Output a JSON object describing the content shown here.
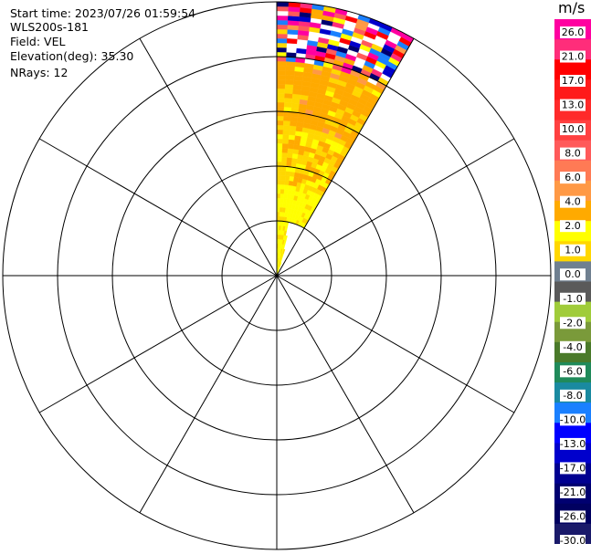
{
  "info": {
    "start_time": "Start time: 2023/07/26 01:59:54",
    "instrument": "WLS200s-181",
    "field": "Field: VEL",
    "elevation": "Elevation(deg): 35.30",
    "nrays": "NRays: 12"
  },
  "colorbar": {
    "unit": "m/s",
    "labels": [
      "26.0",
      "21.0",
      "17.0",
      "13.0",
      "10.0",
      "8.0",
      "6.0",
      "4.0",
      "2.0",
      "1.0",
      "0.0",
      "-1.0",
      "-2.0",
      "-4.0",
      "-6.0",
      "-8.0",
      "-10.0",
      "-13.0",
      "-17.0",
      "-21.0",
      "-26.0",
      "-30.0"
    ],
    "colors": [
      "#ff00a0",
      "#ff2d7a",
      "#ff0000",
      "#ff1a1a",
      "#ff2a2a",
      "#ff4040",
      "#ff5a5a",
      "#ff7a55",
      "#ff9945",
      "#ffaa00",
      "#ffff00",
      "#ffd700",
      "#708090",
      "#5a5a5a",
      "#a0cc3a",
      "#7a9a3a",
      "#4a7a2a",
      "#208a5a",
      "#1a8aa0",
      "#1a80ff",
      "#0000ff",
      "#0000cc",
      "#000090",
      "#000070",
      "#000060",
      "#1a1a6a"
    ]
  },
  "chart_data": {
    "type": "heatmap",
    "projection": "polar (PPI)",
    "field": "VEL",
    "units": "m/s",
    "elevation_deg": 35.3,
    "nrays": 12,
    "azimuth_sector_deg": [
      0,
      30
    ],
    "rings": 5,
    "spokes_every_deg": 30,
    "range_bins": [
      {
        "range_fraction": [
          0.0,
          0.33
        ],
        "dominant_value_ms": 2.0,
        "category": "yellow (1.0 to 4.0)"
      },
      {
        "range_fraction": [
          0.33,
          0.55
        ],
        "dominant_value_ms": 4.0,
        "category": "yellow/orange (2.0 to 6.0)"
      },
      {
        "range_fraction": [
          0.55,
          0.78
        ],
        "dominant_value_ms": 6.0,
        "category": "orange (4.0 to 8.0)"
      },
      {
        "range_fraction": [
          0.78,
          1.0
        ],
        "dominant_value_ms": null,
        "category": "mixed noise (-30.0 to 26.0)"
      }
    ]
  }
}
